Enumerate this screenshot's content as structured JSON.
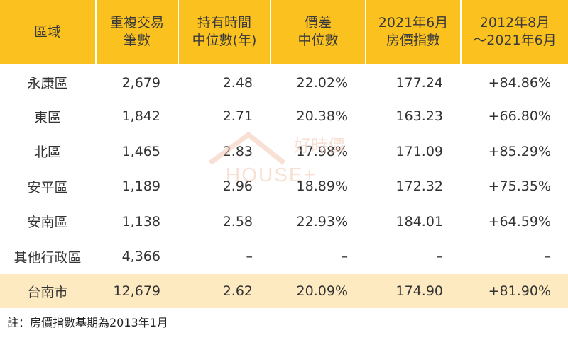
{
  "table": {
    "headers": [
      [
        "區域"
      ],
      [
        "重複交易",
        "筆數"
      ],
      [
        "持有時間",
        "中位數(年)"
      ],
      [
        "價差",
        "中位數"
      ],
      [
        "2021年6月",
        "房價指數"
      ],
      [
        "2012年8月",
        "～2021年6月"
      ]
    ],
    "rows": [
      [
        "永康區",
        "2,679",
        "2.48",
        "22.02%",
        "177.24",
        "+84.86%"
      ],
      [
        "東區",
        "1,842",
        "2.71",
        "20.38%",
        "163.23",
        "+66.80%"
      ],
      [
        "北區",
        "1,465",
        "2.83",
        "17.98%",
        "171.09",
        "+85.29%"
      ],
      [
        "安平區",
        "1,189",
        "2.96",
        "18.89%",
        "172.32",
        "+75.35%"
      ],
      [
        "安南區",
        "1,138",
        "2.58",
        "22.93%",
        "184.01",
        "+64.59%"
      ],
      [
        "其他行政區",
        "4,366",
        "–",
        "–",
        "–",
        "–"
      ]
    ],
    "total": [
      "台南市",
      "12,679",
      "2.62",
      "20.09%",
      "174.90",
      "+81.90%"
    ]
  },
  "watermark": {
    "brand_cn": "好時價",
    "brand_en": "HOUSE+"
  },
  "note": "註：房價指數基期為2013年1月",
  "colors": {
    "header_bg": "#fbc21f",
    "total_bg": "#fdeac0",
    "watermark": "#f3c7b4"
  }
}
